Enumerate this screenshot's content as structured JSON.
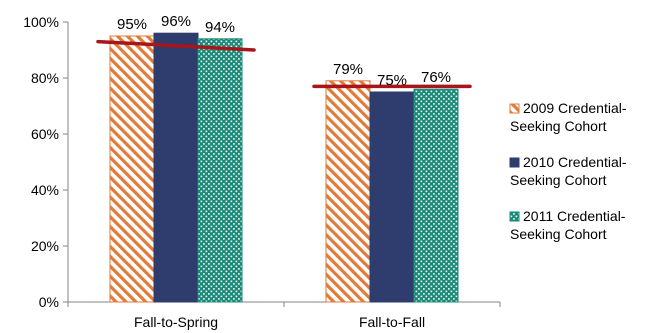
{
  "chart_data": {
    "type": "bar",
    "categories": [
      "Fall-to-Spring",
      "Fall-to-Fall"
    ],
    "series": [
      {
        "name": "2009 Credential-Seeking Cohort",
        "values": [
          95,
          79
        ],
        "labels": [
          "95%",
          "79%"
        ],
        "color": "#E07B39",
        "pattern": "diagonal-stripes"
      },
      {
        "name": "2010 Credential-Seeking Cohort",
        "values": [
          96,
          75
        ],
        "labels": [
          "96%",
          "75%"
        ],
        "color": "#2E3D6E",
        "pattern": "solid"
      },
      {
        "name": "2011 Credential-Seeking Cohort",
        "values": [
          94,
          76
        ],
        "labels": [
          "94%",
          "76%"
        ],
        "color": "#1A8A78",
        "pattern": "dots"
      }
    ],
    "trend_lines": [
      {
        "category": "Fall-to-Spring",
        "start_value": 93,
        "end_value": 90
      },
      {
        "category": "Fall-to-Fall",
        "start_value": 77,
        "end_value": 77
      }
    ],
    "trend_line_color": "#A8151B",
    "yticks": [
      "0%",
      "20%",
      "40%",
      "60%",
      "80%",
      "100%"
    ],
    "ylim": [
      0,
      100
    ],
    "title": "",
    "xlabel": "",
    "ylabel": "",
    "grid": false,
    "legend_position": "right"
  }
}
